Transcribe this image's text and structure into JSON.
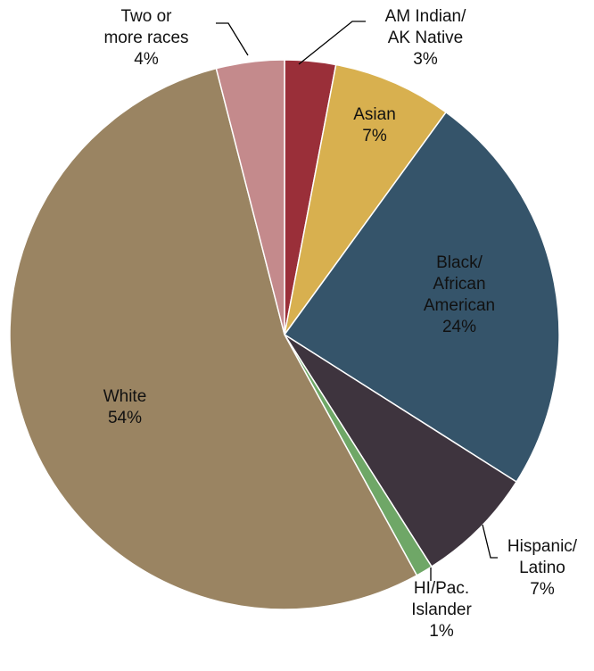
{
  "chart_data": {
    "type": "pie",
    "title": "",
    "slices": [
      {
        "name": "AM Indian/ AK Native",
        "label_lines": [
          "AM Indian/",
          "AK Native"
        ],
        "value": 3,
        "value_label": "3%",
        "color": "#9a2f39"
      },
      {
        "name": "Asian",
        "label_lines": [
          "Asian"
        ],
        "value": 7,
        "value_label": "7%",
        "color": "#d8b04f"
      },
      {
        "name": "Black/ African American",
        "label_lines": [
          "Black/",
          "African",
          "American"
        ],
        "value": 24,
        "value_label": "24%",
        "color": "#35546a"
      },
      {
        "name": "Hispanic/ Latino",
        "label_lines": [
          "Hispanic/",
          "Latino"
        ],
        "value": 7,
        "value_label": "7%",
        "color": "#3e343e"
      },
      {
        "name": "HI/Pac. Islander",
        "label_lines": [
          "HI/Pac.",
          "Islander"
        ],
        "value": 1,
        "value_label": "1%",
        "color": "#6fa767"
      },
      {
        "name": "White",
        "label_lines": [
          "White"
        ],
        "value": 54,
        "value_label": "54%",
        "color": "#9a8462"
      },
      {
        "name": "Two or more races",
        "label_lines": [
          "Two or",
          "more races"
        ],
        "value": 4,
        "value_label": "4%",
        "color": "#c48a8c"
      }
    ]
  }
}
